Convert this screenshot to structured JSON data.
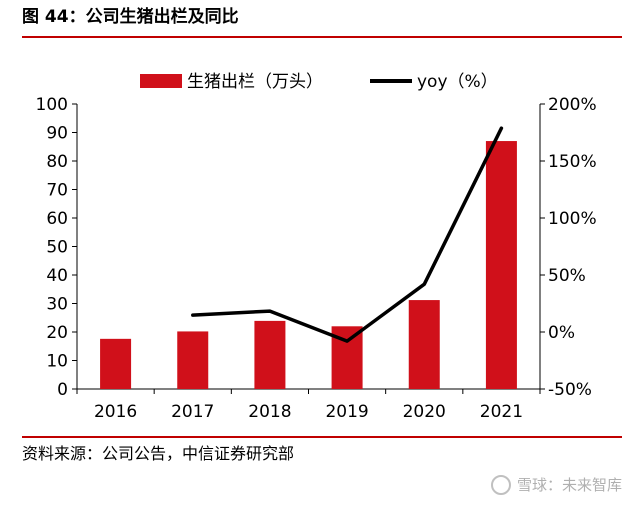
{
  "header": {
    "title": "图 44：公司生猪出栏及同比"
  },
  "footer": {
    "source": "资料来源：公司公告，中信证券研究部",
    "watermark": "雪球：未来智库"
  },
  "colors": {
    "accent": "#c00000",
    "bar": "#d0101a",
    "line": "#000000"
  },
  "chart_data": {
    "type": "bar",
    "categories": [
      "2016",
      "2017",
      "2018",
      "2019",
      "2020",
      "2021"
    ],
    "series": [
      {
        "name": "生猪出栏（万头）",
        "type": "bar",
        "axis": "left",
        "values": [
          17.6,
          20.2,
          23.9,
          22.0,
          31.2,
          87.0
        ]
      },
      {
        "name": "yoy（%）",
        "type": "line",
        "axis": "right",
        "values": [
          null,
          14.8,
          18.3,
          -8.0,
          41.9,
          178.8
        ]
      }
    ],
    "ylim_left": [
      0,
      100
    ],
    "yticks_left": [
      "0",
      "10",
      "20",
      "30",
      "40",
      "50",
      "60",
      "70",
      "80",
      "90",
      "100"
    ],
    "ylim_right": [
      -50,
      200
    ],
    "yticks_right": [
      "-50%",
      "0%",
      "50%",
      "100%",
      "150%",
      "200%"
    ],
    "legend_position": "top",
    "grid": false
  }
}
